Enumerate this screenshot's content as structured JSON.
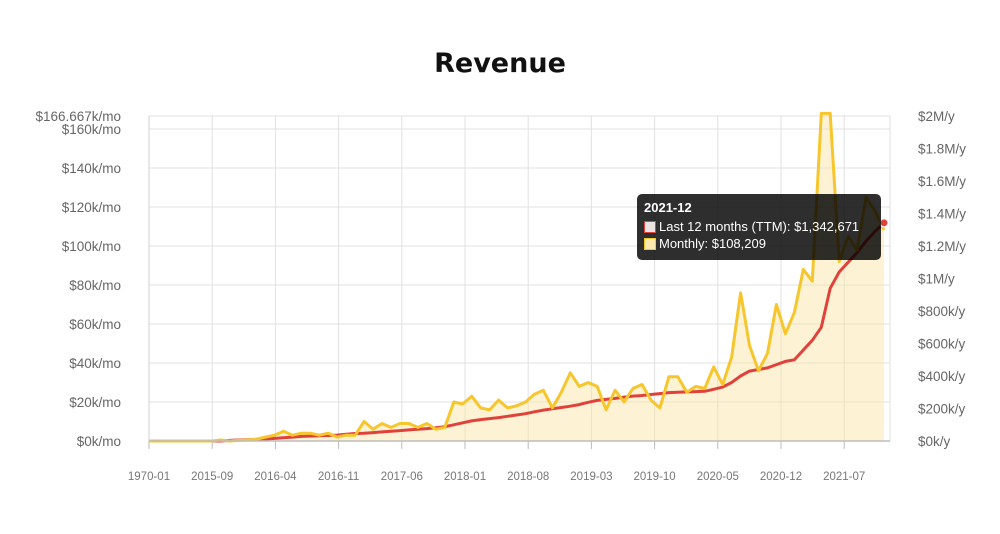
{
  "colors": {
    "ttm": "#e0413a",
    "monthly": "#f6c62c",
    "area": "#fbe4a0",
    "grid": "#e1e1e1"
  },
  "chart_data": {
    "type": "line",
    "title": "Revenue",
    "left_axis": {
      "ticks": [
        "$0k/mo",
        "$20k/mo",
        "$40k/mo",
        "$60k/mo",
        "$80k/mo",
        "$100k/mo",
        "$120k/mo",
        "$140k/mo",
        "$160k/mo",
        "$166.667k/mo"
      ],
      "values": [
        0,
        20000,
        40000,
        60000,
        80000,
        100000,
        120000,
        140000,
        160000,
        166667
      ],
      "ylim": [
        0,
        166667
      ]
    },
    "right_axis": {
      "ticks": [
        "$0k/y",
        "$200k/y",
        "$400k/y",
        "$600k/y",
        "$800k/y",
        "$1M/y",
        "$1.2M/y",
        "$1.4M/y",
        "$1.6M/y",
        "$1.8M/y",
        "$2M/y"
      ],
      "values": [
        0,
        200000,
        400000,
        600000,
        800000,
        1000000,
        1200000,
        1400000,
        1600000,
        1800000,
        2000000
      ],
      "ylim": [
        0,
        2000000
      ]
    },
    "x_ticks": [
      "1970-01",
      "2015-09",
      "2016-04",
      "2016-11",
      "2017-06",
      "2018-01",
      "2018-08",
      "2019-03",
      "2019-10",
      "2020-05",
      "2020-12",
      "2021-07"
    ],
    "grid": true,
    "series": [
      {
        "name": "Last 12 months (TTM)",
        "axis": "right",
        "values": [
          0,
          0,
          0,
          0,
          0,
          0,
          0,
          0,
          0,
          4000,
          6000,
          8000,
          10000,
          12000,
          16000,
          20000,
          24000,
          28000,
          30000,
          32000,
          34000,
          36000,
          42000,
          46000,
          48000,
          52000,
          56000,
          60000,
          64000,
          68000,
          72000,
          76000,
          82000,
          88000,
          100000,
          112000,
          124000,
          132000,
          138000,
          144000,
          152000,
          160000,
          168000,
          180000,
          190000,
          198000,
          206000,
          214000,
          224000,
          238000,
          250000,
          256000,
          262000,
          270000,
          276000,
          280000,
          286000,
          292000,
          298000,
          300000,
          302000,
          304000,
          306000,
          318000,
          332000,
          360000,
          400000,
          430000,
          440000,
          450000,
          470000,
          490000,
          500000,
          560000,
          620000,
          700000,
          940000,
          1040000,
          1100000,
          1160000,
          1230000,
          1290000,
          1342671
        ]
      },
      {
        "name": "Monthly",
        "axis": "left",
        "values": [
          0,
          0,
          0,
          0,
          0,
          0,
          0,
          0,
          500,
          0,
          300,
          500,
          1000,
          2000,
          3000,
          5000,
          3000,
          4000,
          4000,
          3000,
          4000,
          2000,
          3000,
          3000,
          10000,
          6000,
          9000,
          7000,
          9000,
          9000,
          7000,
          9000,
          6000,
          7000,
          20000,
          19000,
          23000,
          17000,
          16000,
          21000,
          17000,
          18000,
          20000,
          24000,
          26000,
          17000,
          25000,
          35000,
          28000,
          30000,
          28000,
          16000,
          26000,
          20000,
          27000,
          29000,
          21000,
          17000,
          33000,
          33000,
          25000,
          28000,
          27000,
          38000,
          29000,
          43000,
          76000,
          49000,
          36000,
          45000,
          70000,
          55000,
          66000,
          88000,
          82000,
          168000,
          168000,
          92000,
          105000,
          98000,
          125000,
          118000,
          108209
        ]
      }
    ],
    "tooltip": {
      "title": "2021-12",
      "line1": "Last 12 months (TTM): $1,342,671",
      "line2": "Monthly: $108,209"
    }
  }
}
